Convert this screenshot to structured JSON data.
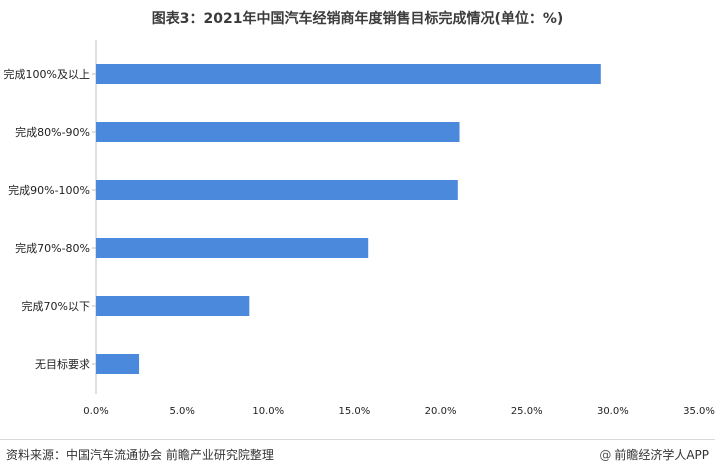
{
  "title": "图表3：2021年中国汽车经销商年度销售目标完成情况(单位：%)",
  "footer": {
    "source": "资料来源：中国汽车流通协会 前瞻产业研究院整理",
    "brand": "前瞻经济学人APP",
    "brand_icon": "at-icon"
  },
  "chart_data": {
    "type": "bar",
    "orientation": "horizontal",
    "title": "图表3：2021年中国汽车经销商年度销售目标完成情况(单位：%)",
    "categories": [
      "完成100%及以上",
      "完成80%-90%",
      "完成90%-100%",
      "完成70%-80%",
      "完成70%以下",
      "无目标要求"
    ],
    "values": [
      29.3,
      21.1,
      21.0,
      15.8,
      8.9,
      2.5
    ],
    "xlim": [
      0,
      35
    ],
    "xticks": [
      "0.0%",
      "5.0%",
      "10.0%",
      "15.0%",
      "20.0%",
      "25.0%",
      "30.0%",
      "35.0%"
    ],
    "xlabel": "",
    "ylabel": "",
    "bar_color": "#4a89dc",
    "grid": false,
    "legend": "none"
  }
}
